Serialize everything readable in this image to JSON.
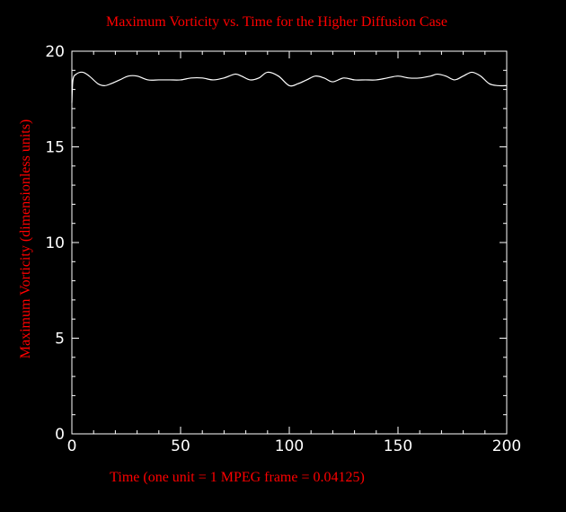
{
  "chart_data": {
    "type": "line",
    "title": "Maximum Vorticity vs. Time for the Higher Diffusion Case",
    "xlabel": "Time (one unit = 1 MPEG frame = 0.04125)",
    "ylabel": "Maximum Vorticity (dimensionless units)",
    "xlim": [
      0,
      200
    ],
    "ylim": [
      0,
      20
    ],
    "x_ticks": [
      "0",
      "50",
      "100",
      "150",
      "200"
    ],
    "y_ticks": [
      "0",
      "5",
      "10",
      "15",
      "20"
    ],
    "x_tick_values": [
      0,
      50,
      100,
      150,
      200
    ],
    "y_tick_values": [
      0,
      5,
      10,
      15,
      20
    ],
    "colors": {
      "background": "#000000",
      "text": "#ff0000",
      "axes": "#ffffff",
      "line": "#ffffff"
    },
    "series": [
      {
        "x": [
          0,
          0.5,
          2,
          5,
          8,
          12,
          15,
          18,
          22,
          26,
          30,
          35,
          40,
          45,
          50,
          55,
          60,
          65,
          70,
          75,
          78,
          82,
          86,
          90,
          95,
          100,
          104,
          108,
          112,
          116,
          120,
          125,
          130,
          135,
          140,
          145,
          150,
          155,
          160,
          165,
          168,
          172,
          176,
          180,
          184,
          188,
          192,
          196,
          200
        ],
        "y": [
          17.3,
          18.5,
          18.8,
          18.9,
          18.7,
          18.3,
          18.2,
          18.3,
          18.5,
          18.7,
          18.7,
          18.5,
          18.5,
          18.5,
          18.5,
          18.6,
          18.6,
          18.5,
          18.6,
          18.8,
          18.7,
          18.5,
          18.6,
          18.9,
          18.7,
          18.2,
          18.3,
          18.5,
          18.7,
          18.6,
          18.4,
          18.6,
          18.5,
          18.5,
          18.5,
          18.6,
          18.7,
          18.6,
          18.6,
          18.7,
          18.8,
          18.7,
          18.5,
          18.7,
          18.9,
          18.7,
          18.3,
          18.2,
          18.2
        ]
      }
    ]
  }
}
